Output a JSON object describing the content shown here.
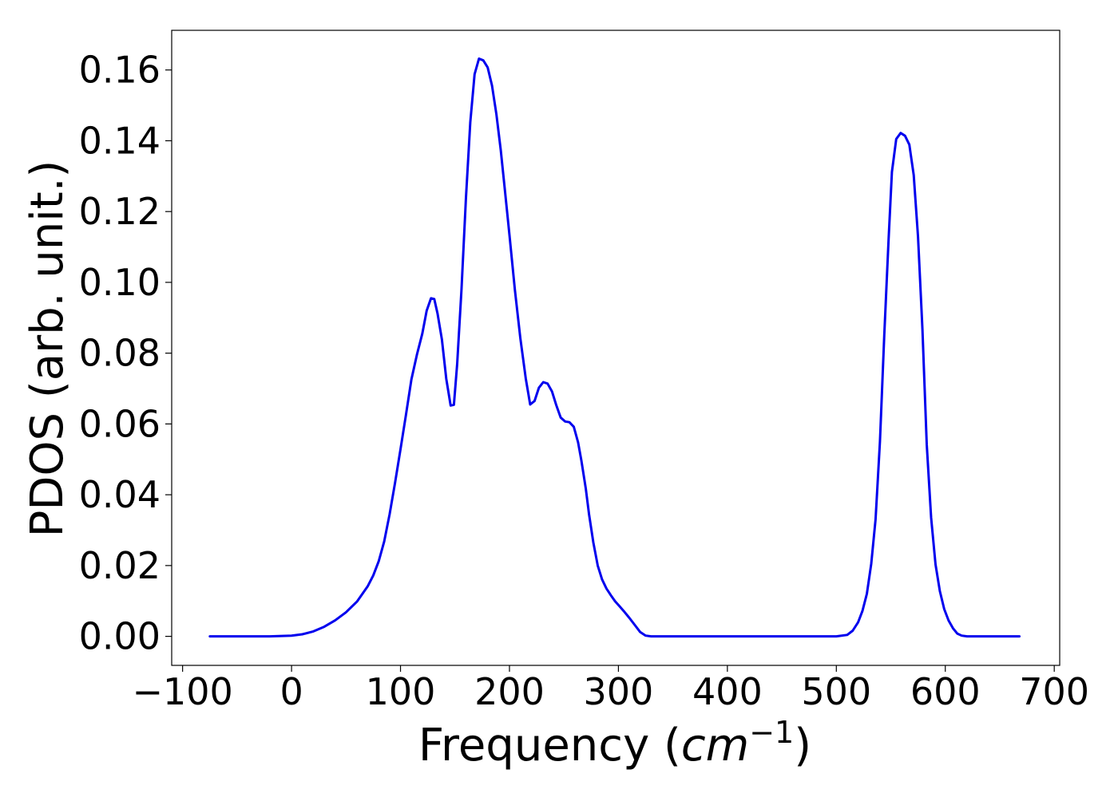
{
  "chart_data": {
    "type": "line",
    "title": "",
    "xlabel": "Frequency (",
    "xlabel_math": "cm",
    "xlabel_sup": "−1",
    "xlabel_close": ")",
    "ylabel": "PDOS (arb. unit.)",
    "xlim": [
      -110,
      705
    ],
    "ylim": [
      -0.0082,
      0.1712
    ],
    "x_ticks": [
      -100,
      0,
      100,
      200,
      300,
      400,
      500,
      600,
      700
    ],
    "x_tick_labels": [
      "−100",
      "0",
      "100",
      "200",
      "300",
      "400",
      "500",
      "600",
      "700"
    ],
    "y_ticks": [
      0.0,
      0.02,
      0.04,
      0.06,
      0.08,
      0.1,
      0.12,
      0.14,
      0.16
    ],
    "y_tick_labels": [
      "0.00",
      "0.02",
      "0.04",
      "0.06",
      "0.08",
      "0.10",
      "0.12",
      "0.14",
      "0.16"
    ],
    "grid": false,
    "legend": "none",
    "series": [
      {
        "color": "#0000ee",
        "x": [
          -75,
          -20,
          0,
          10,
          20,
          30,
          40,
          50,
          60,
          70,
          75,
          80,
          85,
          90,
          95,
          100,
          105,
          110,
          115,
          120,
          124,
          128,
          131,
          134,
          138,
          142,
          146,
          149,
          152,
          156,
          160,
          164,
          168,
          172,
          176,
          180,
          184,
          188,
          192,
          196,
          200,
          205,
          210,
          215,
          219,
          223,
          227,
          231,
          235,
          239,
          243,
          247,
          251,
          255,
          259,
          263,
          266,
          270,
          273,
          277,
          281,
          285,
          289,
          293,
          297,
          301,
          305,
          310,
          315,
          320,
          325,
          330,
          400,
          500,
          510,
          515,
          520,
          524,
          528,
          532,
          536,
          540,
          544,
          548,
          551,
          555,
          559,
          563,
          567,
          571,
          575,
          579,
          583,
          587,
          591,
          595,
          599,
          603,
          607,
          611,
          615,
          620,
          630,
          668
        ],
        "y": [
          0.0,
          0.0,
          0.0002,
          0.0006,
          0.0014,
          0.0027,
          0.0045,
          0.0068,
          0.0098,
          0.0142,
          0.0172,
          0.0212,
          0.0268,
          0.0345,
          0.0434,
          0.0528,
          0.0625,
          0.0726,
          0.0795,
          0.0855,
          0.092,
          0.0955,
          0.0953,
          0.0912,
          0.0838,
          0.0728,
          0.0652,
          0.0654,
          0.077,
          0.098,
          0.1235,
          0.1452,
          0.1588,
          0.1632,
          0.1627,
          0.1607,
          0.1556,
          0.1475,
          0.1373,
          0.1255,
          0.1133,
          0.0978,
          0.0842,
          0.0728,
          0.0655,
          0.0665,
          0.0702,
          0.0718,
          0.0714,
          0.0692,
          0.0653,
          0.0618,
          0.0607,
          0.0605,
          0.0592,
          0.0548,
          0.0497,
          0.0418,
          0.0345,
          0.0265,
          0.02,
          0.0161,
          0.0135,
          0.0116,
          0.0099,
          0.0085,
          0.0071,
          0.0052,
          0.0032,
          0.0012,
          0.0002,
          0.0,
          0.0,
          0.0,
          0.0004,
          0.0016,
          0.004,
          0.0072,
          0.012,
          0.0205,
          0.033,
          0.055,
          0.085,
          0.1125,
          0.1312,
          0.1405,
          0.1422,
          0.1414,
          0.1389,
          0.1303,
          0.1128,
          0.0868,
          0.0542,
          0.0335,
          0.0203,
          0.0128,
          0.0077,
          0.0045,
          0.0023,
          0.0008,
          0.0002,
          0.0,
          0.0,
          0.0
        ]
      }
    ]
  }
}
